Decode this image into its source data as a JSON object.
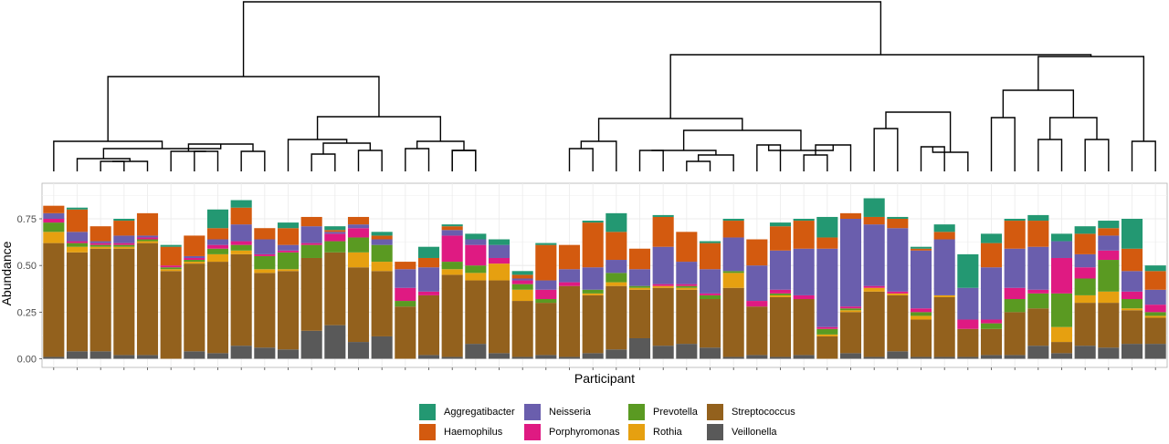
{
  "chart_data": {
    "type": "bar",
    "stacked": true,
    "dendrogram": true,
    "xlabel": "Participant",
    "ylabel": "Abundance",
    "yticks": [
      "0.00",
      "0.25",
      "0.50",
      "0.75"
    ],
    "ylim": [
      0,
      0.92
    ],
    "grid": true,
    "legend_position": "bottom",
    "series": [
      {
        "name": "Veillonella",
        "color": "#595959",
        "values": [
          0.01,
          0.04,
          0.04,
          0.02,
          0.02,
          0.0,
          0.04,
          0.03,
          0.07,
          0.06,
          0.05,
          0.15,
          0.18,
          0.09,
          0.12,
          0.0,
          0.02,
          0.01,
          0.08,
          0.03,
          0.01,
          0.02,
          0.01,
          0.03,
          0.05,
          0.11,
          0.07,
          0.08,
          0.06,
          0.01,
          0.02,
          0.01,
          0.02,
          0.0,
          0.03,
          0.01,
          0.04,
          0.01,
          0.01,
          0.01,
          0.02,
          0.02,
          0.07,
          0.03,
          0.07,
          0.06,
          0.08,
          0.08
        ]
      },
      {
        "name": "Streptococcus",
        "color": "#93611d",
        "values": [
          0.61,
          0.53,
          0.55,
          0.57,
          0.6,
          0.47,
          0.47,
          0.49,
          0.49,
          0.4,
          0.42,
          0.39,
          0.39,
          0.4,
          0.35,
          0.28,
          0.32,
          0.44,
          0.34,
          0.39,
          0.3,
          0.28,
          0.38,
          0.31,
          0.34,
          0.26,
          0.31,
          0.29,
          0.26,
          0.37,
          0.26,
          0.32,
          0.3,
          0.12,
          0.22,
          0.35,
          0.3,
          0.2,
          0.32,
          0.15,
          0.14,
          0.23,
          0.2,
          0.06,
          0.23,
          0.24,
          0.18,
          0.14
        ]
      },
      {
        "name": "Rothia",
        "color": "#e6a010",
        "values": [
          0.06,
          0.03,
          0.01,
          0.01,
          0.01,
          0.01,
          0.01,
          0.04,
          0.02,
          0.02,
          0.01,
          0.0,
          0.0,
          0.08,
          0.05,
          0.0,
          0.0,
          0.03,
          0.04,
          0.09,
          0.06,
          0.0,
          0.0,
          0.01,
          0.02,
          0.01,
          0.01,
          0.01,
          0.0,
          0.08,
          0.0,
          0.01,
          0.0,
          0.01,
          0.01,
          0.02,
          0.01,
          0.02,
          0.01,
          0.0,
          0.0,
          0.0,
          0.0,
          0.08,
          0.04,
          0.06,
          0.01,
          0.01
        ]
      },
      {
        "name": "Prevotella",
        "color": "#5a9a22",
        "values": [
          0.05,
          0.02,
          0.01,
          0.01,
          0.01,
          0.01,
          0.01,
          0.03,
          0.03,
          0.07,
          0.09,
          0.07,
          0.06,
          0.08,
          0.09,
          0.03,
          0.0,
          0.04,
          0.04,
          0.0,
          0.03,
          0.02,
          0.0,
          0.02,
          0.05,
          0.01,
          0.0,
          0.01,
          0.02,
          0.01,
          0.0,
          0.01,
          0.0,
          0.03,
          0.01,
          0.0,
          0.0,
          0.02,
          0.0,
          0.0,
          0.03,
          0.07,
          0.08,
          0.18,
          0.09,
          0.17,
          0.05,
          0.02
        ]
      },
      {
        "name": "Porphyromonas",
        "color": "#df1a82",
        "values": [
          0.02,
          0.01,
          0.01,
          0.01,
          0.01,
          0.01,
          0.01,
          0.02,
          0.02,
          0.01,
          0.01,
          0.01,
          0.04,
          0.05,
          0.0,
          0.07,
          0.02,
          0.14,
          0.11,
          0.03,
          0.02,
          0.05,
          0.02,
          0.0,
          0.0,
          0.0,
          0.01,
          0.01,
          0.01,
          0.0,
          0.03,
          0.02,
          0.02,
          0.01,
          0.01,
          0.01,
          0.01,
          0.02,
          0.0,
          0.05,
          0.02,
          0.06,
          0.02,
          0.19,
          0.06,
          0.05,
          0.04,
          0.04
        ]
      },
      {
        "name": "Neisseria",
        "color": "#6a5ead",
        "values": [
          0.03,
          0.05,
          0.01,
          0.04,
          0.01,
          0.0,
          0.01,
          0.03,
          0.09,
          0.08,
          0.03,
          0.09,
          0.01,
          0.02,
          0.03,
          0.1,
          0.13,
          0.03,
          0.03,
          0.07,
          0.01,
          0.05,
          0.07,
          0.12,
          0.07,
          0.09,
          0.2,
          0.12,
          0.13,
          0.18,
          0.19,
          0.21,
          0.25,
          0.42,
          0.47,
          0.33,
          0.34,
          0.31,
          0.3,
          0.17,
          0.28,
          0.21,
          0.23,
          0.09,
          0.07,
          0.08,
          0.11,
          0.08
        ]
      },
      {
        "name": "Haemophilus",
        "color": "#d35a0f",
        "values": [
          0.04,
          0.12,
          0.08,
          0.08,
          0.12,
          0.1,
          0.11,
          0.06,
          0.09,
          0.06,
          0.09,
          0.05,
          0.01,
          0.04,
          0.02,
          0.04,
          0.05,
          0.02,
          0.0,
          0.0,
          0.02,
          0.19,
          0.13,
          0.24,
          0.15,
          0.11,
          0.16,
          0.16,
          0.14,
          0.09,
          0.14,
          0.13,
          0.15,
          0.06,
          0.03,
          0.04,
          0.05,
          0.01,
          0.04,
          0.0,
          0.13,
          0.15,
          0.14,
          0.0,
          0.11,
          0.04,
          0.12,
          0.1
        ]
      },
      {
        "name": "Aggregatibacter",
        "color": "#239872",
        "values": [
          0.0,
          0.01,
          0.0,
          0.01,
          0.0,
          0.01,
          0.0,
          0.1,
          0.04,
          0.0,
          0.03,
          0.0,
          0.02,
          0.0,
          0.02,
          0.0,
          0.06,
          0.01,
          0.03,
          0.03,
          0.02,
          0.01,
          0.0,
          0.01,
          0.1,
          0.0,
          0.01,
          0.0,
          0.01,
          0.01,
          0.0,
          0.02,
          0.01,
          0.11,
          0.0,
          0.1,
          0.01,
          0.01,
          0.04,
          0.18,
          0.05,
          0.01,
          0.03,
          0.04,
          0.04,
          0.04,
          0.16,
          0.03
        ]
      }
    ]
  },
  "legend": {
    "columns": [
      [
        "Aggregatibacter",
        "Haemophilus"
      ],
      [
        "Neisseria",
        "Porphyromonas"
      ],
      [
        "Prevotella",
        "Rothia"
      ],
      [
        "Streptococcus",
        "Veillonella"
      ]
    ],
    "colors": {
      "Aggregatibacter": "#239872",
      "Haemophilus": "#d35a0f",
      "Neisseria": "#6a5ead",
      "Porphyromonas": "#df1a82",
      "Prevotella": "#5a9a22",
      "Rothia": "#e6a010",
      "Streptococcus": "#93611d",
      "Veillonella": "#595959"
    }
  }
}
